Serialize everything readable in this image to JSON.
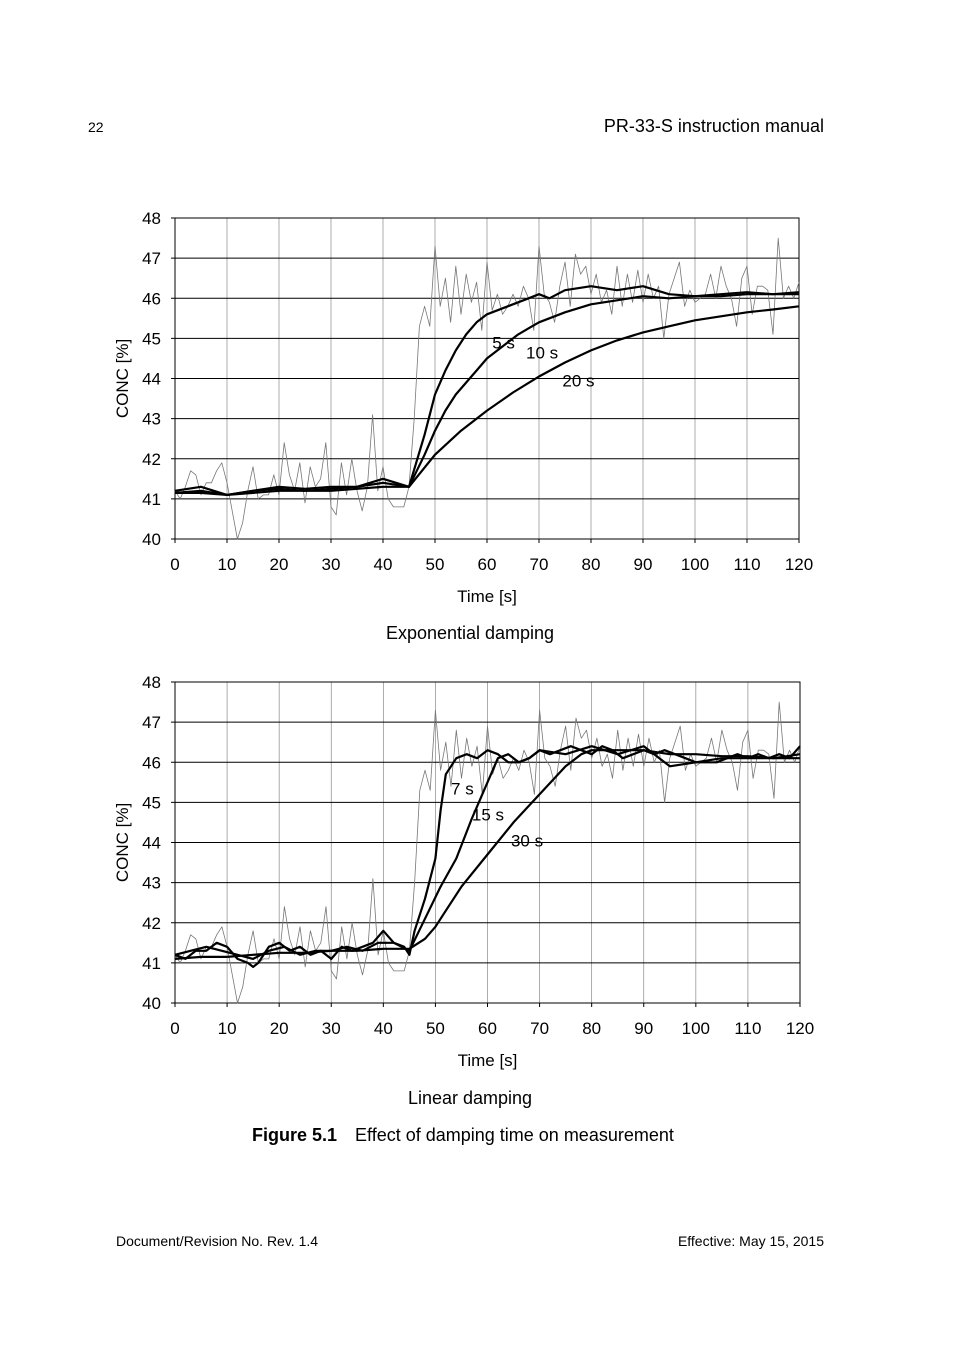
{
  "header": {
    "page_number": "22",
    "doc_title": "PR-33-S instruction manual"
  },
  "footer": {
    "left": "Document/Revision No. Rev. 1.4",
    "right": "Effective: May 15, 2015"
  },
  "figure": {
    "number": "Figure 5.1",
    "caption": "Effect of damping time on measurement"
  },
  "chart_data": [
    {
      "type": "line",
      "title": "Exponential damping",
      "xlabel": "Time [s]",
      "ylabel": "CONC [%]",
      "xlim": [
        0,
        120
      ],
      "ylim": [
        40,
        48
      ],
      "xticks": [
        0,
        10,
        20,
        30,
        40,
        50,
        60,
        70,
        80,
        90,
        100,
        110,
        120
      ],
      "yticks": [
        40,
        41,
        42,
        43,
        44,
        45,
        46,
        47,
        48
      ],
      "grid": true,
      "series": [
        {
          "role": "raw",
          "x": [
            0,
            1,
            2,
            3,
            4,
            5,
            6,
            7,
            8,
            9,
            10,
            11,
            12,
            13,
            14,
            15,
            16,
            17,
            18,
            19,
            20,
            21,
            22,
            23,
            24,
            25,
            26,
            27,
            28,
            29,
            30,
            31,
            32,
            33,
            34,
            35,
            36,
            37,
            38,
            39,
            40,
            41,
            42,
            43,
            44,
            45,
            46,
            47,
            48,
            49,
            50,
            51,
            52,
            53,
            54,
            55,
            56,
            57,
            58,
            59,
            60,
            61,
            62,
            63,
            64,
            65,
            66,
            67,
            68,
            69,
            70,
            71,
            72,
            73,
            74,
            75,
            76,
            77,
            78,
            79,
            80,
            81,
            82,
            83,
            84,
            85,
            86,
            87,
            88,
            89,
            90,
            91,
            92,
            93,
            94,
            95,
            96,
            97,
            98,
            99,
            100,
            101,
            102,
            103,
            104,
            105,
            106,
            107,
            108,
            109,
            110,
            111,
            112,
            113,
            114,
            115,
            116,
            117,
            118,
            119,
            120
          ],
          "y": [
            41.2,
            41.0,
            41.3,
            41.7,
            41.6,
            41.1,
            41.4,
            41.4,
            41.7,
            41.9,
            41.4,
            40.7,
            40.0,
            40.4,
            41.2,
            41.8,
            41.0,
            41.1,
            41.1,
            41.6,
            41.1,
            42.4,
            41.6,
            41.2,
            41.9,
            40.9,
            41.8,
            41.3,
            41.5,
            42.4,
            40.8,
            40.6,
            41.9,
            41.1,
            42.0,
            41.2,
            40.7,
            41.3,
            43.1,
            41.2,
            41.8,
            41.0,
            40.8,
            40.8,
            40.8,
            41.3,
            43.0,
            45.3,
            45.8,
            45.3,
            47.3,
            45.8,
            46.5,
            45.4,
            46.8,
            45.6,
            46.6,
            45.9,
            46.4,
            45.2,
            46.9,
            45.7,
            46.1,
            45.6,
            45.8,
            46.1,
            45.8,
            46.3,
            46.0,
            45.2,
            47.3,
            46.1,
            45.9,
            45.4,
            46.3,
            46.9,
            45.8,
            47.1,
            46.6,
            46.8,
            46.1,
            46.6,
            45.9,
            46.2,
            45.6,
            46.8,
            45.8,
            46.6,
            45.9,
            46.7,
            45.9,
            46.6,
            46.0,
            46.3,
            45.0,
            46.1,
            46.5,
            46.9,
            45.8,
            46.2,
            45.9,
            46.0,
            46.1,
            46.6,
            46.0,
            46.8,
            46.3,
            46.0,
            45.3,
            46.5,
            46.8,
            45.6,
            46.3,
            46.3,
            46.2,
            45.1,
            47.5,
            46.0,
            46.3,
            46.0,
            46.4
          ]
        },
        {
          "name": "5 s",
          "x": [
            0,
            5,
            10,
            15,
            20,
            25,
            30,
            35,
            40,
            45,
            48,
            50,
            52,
            54,
            56,
            58,
            60,
            62,
            64,
            66,
            68,
            70,
            72,
            75,
            80,
            85,
            90,
            95,
            100,
            105,
            110,
            115,
            120
          ],
          "y": [
            41.2,
            41.3,
            41.1,
            41.2,
            41.3,
            41.25,
            41.3,
            41.3,
            41.5,
            41.3,
            42.6,
            43.6,
            44.2,
            44.7,
            45.1,
            45.4,
            45.6,
            45.7,
            45.8,
            45.9,
            46.0,
            46.1,
            46.0,
            46.2,
            46.3,
            46.2,
            46.3,
            46.1,
            46.05,
            46.1,
            46.15,
            46.1,
            46.15
          ]
        },
        {
          "name": "10 s",
          "x": [
            0,
            5,
            10,
            15,
            20,
            25,
            30,
            35,
            40,
            45,
            48,
            50,
            52,
            54,
            56,
            58,
            60,
            62,
            64,
            66,
            68,
            70,
            75,
            80,
            85,
            90,
            95,
            100,
            105,
            110,
            115,
            120
          ],
          "y": [
            41.15,
            41.2,
            41.1,
            41.2,
            41.25,
            41.2,
            41.25,
            41.3,
            41.4,
            41.3,
            42.1,
            42.7,
            43.2,
            43.6,
            43.9,
            44.2,
            44.5,
            44.7,
            44.9,
            45.1,
            45.25,
            45.4,
            45.65,
            45.85,
            45.95,
            46.05,
            46.0,
            46.05,
            46.05,
            46.1,
            46.1,
            46.1
          ]
        },
        {
          "name": "20 s",
          "x": [
            0,
            5,
            10,
            15,
            20,
            25,
            30,
            35,
            40,
            45,
            50,
            55,
            60,
            65,
            70,
            75,
            80,
            85,
            90,
            95,
            100,
            105,
            110,
            115,
            120
          ],
          "y": [
            41.15,
            41.15,
            41.1,
            41.15,
            41.2,
            41.2,
            41.2,
            41.25,
            41.3,
            41.3,
            42.1,
            42.7,
            43.2,
            43.65,
            44.05,
            44.4,
            44.7,
            44.95,
            45.15,
            45.3,
            45.45,
            45.55,
            45.65,
            45.72,
            45.8
          ]
        }
      ],
      "annotations": [
        {
          "text": "5 s",
          "x": 61,
          "y": 44.75
        },
        {
          "text": "10 s",
          "x": 67.5,
          "y": 44.5
        },
        {
          "text": "20 s",
          "x": 74.5,
          "y": 43.8
        }
      ]
    },
    {
      "type": "line",
      "title": "Linear damping",
      "xlabel": "Time [s]",
      "ylabel": "CONC [%]",
      "xlim": [
        0,
        120
      ],
      "ylim": [
        40,
        48
      ],
      "xticks": [
        0,
        10,
        20,
        30,
        40,
        50,
        60,
        70,
        80,
        90,
        100,
        110,
        120
      ],
      "yticks": [
        40,
        41,
        42,
        43,
        44,
        45,
        46,
        47,
        48
      ],
      "grid": true,
      "series": [
        {
          "role": "raw",
          "x": [
            0,
            1,
            2,
            3,
            4,
            5,
            6,
            7,
            8,
            9,
            10,
            11,
            12,
            13,
            14,
            15,
            16,
            17,
            18,
            19,
            20,
            21,
            22,
            23,
            24,
            25,
            26,
            27,
            28,
            29,
            30,
            31,
            32,
            33,
            34,
            35,
            36,
            37,
            38,
            39,
            40,
            41,
            42,
            43,
            44,
            45,
            46,
            47,
            48,
            49,
            50,
            51,
            52,
            53,
            54,
            55,
            56,
            57,
            58,
            59,
            60,
            61,
            62,
            63,
            64,
            65,
            66,
            67,
            68,
            69,
            70,
            71,
            72,
            73,
            74,
            75,
            76,
            77,
            78,
            79,
            80,
            81,
            82,
            83,
            84,
            85,
            86,
            87,
            88,
            89,
            90,
            91,
            92,
            93,
            94,
            95,
            96,
            97,
            98,
            99,
            100,
            101,
            102,
            103,
            104,
            105,
            106,
            107,
            108,
            109,
            110,
            111,
            112,
            113,
            114,
            115,
            116,
            117,
            118,
            119,
            120
          ],
          "y": [
            41.2,
            41.0,
            41.3,
            41.7,
            41.6,
            41.1,
            41.4,
            41.4,
            41.7,
            41.9,
            41.4,
            40.7,
            40.0,
            40.4,
            41.2,
            41.8,
            41.0,
            41.1,
            41.1,
            41.6,
            41.1,
            42.4,
            41.6,
            41.2,
            41.9,
            40.9,
            41.8,
            41.3,
            41.5,
            42.4,
            40.8,
            40.6,
            41.9,
            41.1,
            42.0,
            41.2,
            40.7,
            41.3,
            43.1,
            41.2,
            41.8,
            41.0,
            40.8,
            40.8,
            40.8,
            41.3,
            43.0,
            45.3,
            45.8,
            45.3,
            47.3,
            45.8,
            46.5,
            45.4,
            46.8,
            45.6,
            46.6,
            45.9,
            46.4,
            45.2,
            46.9,
            45.7,
            46.1,
            45.6,
            45.8,
            46.1,
            45.8,
            46.3,
            46.0,
            45.2,
            47.3,
            46.1,
            45.9,
            45.4,
            46.3,
            46.9,
            45.8,
            47.1,
            46.6,
            46.8,
            46.1,
            46.6,
            45.9,
            46.2,
            45.6,
            46.8,
            45.8,
            46.6,
            45.9,
            46.7,
            45.9,
            46.6,
            46.0,
            46.3,
            45.0,
            46.1,
            46.5,
            46.9,
            45.8,
            46.2,
            45.9,
            46.0,
            46.1,
            46.6,
            46.0,
            46.8,
            46.3,
            46.0,
            45.3,
            46.5,
            46.8,
            45.6,
            46.3,
            46.3,
            46.2,
            45.1,
            47.5,
            46.0,
            46.3,
            46.0,
            46.4
          ]
        },
        {
          "name": "7 s",
          "x": [
            0,
            2,
            4,
            6,
            8,
            10,
            12,
            14,
            15,
            16,
            18,
            20,
            22,
            24,
            26,
            28,
            30,
            32,
            34,
            36,
            38,
            40,
            42,
            44,
            45,
            46,
            48,
            50,
            51,
            52,
            54,
            56,
            58,
            60,
            62,
            64,
            66,
            68,
            70,
            72,
            74,
            76,
            78,
            80,
            82,
            84,
            86,
            88,
            90,
            92,
            94,
            96,
            98,
            100,
            102,
            104,
            106,
            108,
            110,
            112,
            114,
            116,
            118,
            120
          ],
          "y": [
            41.2,
            41.1,
            41.3,
            41.3,
            41.5,
            41.4,
            41.1,
            41.0,
            40.9,
            41.0,
            41.4,
            41.5,
            41.3,
            41.4,
            41.2,
            41.3,
            41.1,
            41.4,
            41.3,
            41.4,
            41.5,
            41.8,
            41.5,
            41.4,
            41.2,
            41.8,
            42.6,
            43.6,
            44.8,
            45.7,
            46.1,
            46.2,
            46.1,
            46.3,
            46.2,
            46.0,
            46.0,
            46.1,
            46.3,
            46.2,
            46.3,
            46.4,
            46.3,
            46.2,
            46.4,
            46.3,
            46.1,
            46.2,
            46.3,
            46.2,
            46.3,
            46.2,
            46.1,
            46.0,
            46.0,
            46.0,
            46.1,
            46.2,
            46.1,
            46.2,
            46.1,
            46.2,
            46.1,
            46.4
          ]
        },
        {
          "name": "15 s",
          "x": [
            0,
            3,
            6,
            9,
            12,
            15,
            18,
            21,
            24,
            27,
            30,
            33,
            36,
            39,
            42,
            45,
            48,
            51,
            54,
            57,
            60,
            62,
            64,
            66,
            68,
            70,
            75,
            80,
            85,
            90,
            95,
            100,
            105,
            110,
            115,
            120
          ],
          "y": [
            41.2,
            41.3,
            41.4,
            41.3,
            41.2,
            41.1,
            41.3,
            41.4,
            41.2,
            41.3,
            41.3,
            41.4,
            41.3,
            41.5,
            41.5,
            41.3,
            42.1,
            42.9,
            43.6,
            44.6,
            45.5,
            46.1,
            46.2,
            46.0,
            46.1,
            46.3,
            46.2,
            46.4,
            46.2,
            46.4,
            45.9,
            46.0,
            46.1,
            46.1,
            46.1,
            46.2
          ]
        },
        {
          "name": "30 s",
          "x": [
            0,
            5,
            10,
            15,
            20,
            25,
            30,
            35,
            40,
            45,
            48,
            50,
            52,
            55,
            60,
            65,
            70,
            75,
            78,
            80,
            85,
            90,
            95,
            100,
            105,
            110,
            115,
            120
          ],
          "y": [
            41.1,
            41.15,
            41.15,
            41.2,
            41.25,
            41.25,
            41.3,
            41.3,
            41.35,
            41.35,
            41.6,
            41.9,
            42.3,
            42.9,
            43.7,
            44.5,
            45.2,
            45.9,
            46.2,
            46.3,
            46.3,
            46.3,
            46.2,
            46.2,
            46.15,
            46.15,
            46.1,
            46.1
          ]
        }
      ],
      "annotations": [
        {
          "text": "7 s",
          "x": 53,
          "y": 45.2
        },
        {
          "text": "15 s",
          "x": 57,
          "y": 44.55
        },
        {
          "text": "30 s",
          "x": 64.5,
          "y": 43.9
        }
      ]
    }
  ]
}
